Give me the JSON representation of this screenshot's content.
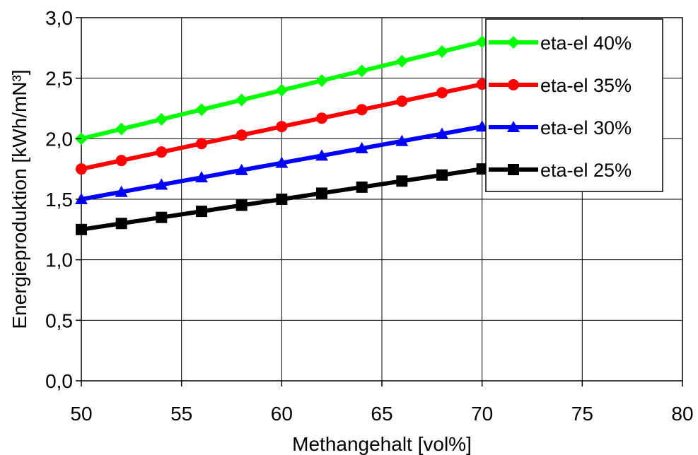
{
  "chart_data": {
    "type": "line",
    "xlabel": "Methangehalt [vol%]",
    "ylabel": "Energieproduktion [kWh/mN³]",
    "xlim": [
      50,
      80
    ],
    "ylim": [
      0,
      3
    ],
    "x_ticks": [
      50,
      55,
      60,
      65,
      70,
      75,
      80
    ],
    "y_ticks": [
      0,
      0.5,
      1,
      1.5,
      2,
      2.5,
      3
    ],
    "x_tick_labels": [
      "50",
      "55",
      "60",
      "65",
      "70",
      "75",
      "80"
    ],
    "y_tick_labels": [
      "0,0",
      "0,5",
      "1,0",
      "1,5",
      "2,0",
      "2,5",
      "3,0"
    ],
    "grid": true,
    "legend_position": "top-right",
    "x": [
      50,
      52,
      54,
      56,
      58,
      60,
      62,
      64,
      66,
      68,
      70
    ],
    "series": [
      {
        "name": "eta-el 40%",
        "color": "#00ff00",
        "marker": "diamond",
        "values": [
          2.0,
          2.08,
          2.16,
          2.24,
          2.32,
          2.4,
          2.48,
          2.56,
          2.64,
          2.72,
          2.8
        ]
      },
      {
        "name": "eta-el 35%",
        "color": "#ff0000",
        "marker": "circle",
        "values": [
          1.75,
          1.82,
          1.89,
          1.96,
          2.03,
          2.1,
          2.17,
          2.24,
          2.31,
          2.38,
          2.45
        ]
      },
      {
        "name": "eta-el 30%",
        "color": "#0000ff",
        "marker": "triangle",
        "values": [
          1.5,
          1.56,
          1.62,
          1.68,
          1.74,
          1.8,
          1.86,
          1.92,
          1.98,
          2.04,
          2.1
        ]
      },
      {
        "name": "eta-el 25%",
        "color": "#000000",
        "marker": "square",
        "values": [
          1.25,
          1.3,
          1.35,
          1.4,
          1.45,
          1.5,
          1.55,
          1.6,
          1.65,
          1.7,
          1.75
        ]
      }
    ]
  }
}
